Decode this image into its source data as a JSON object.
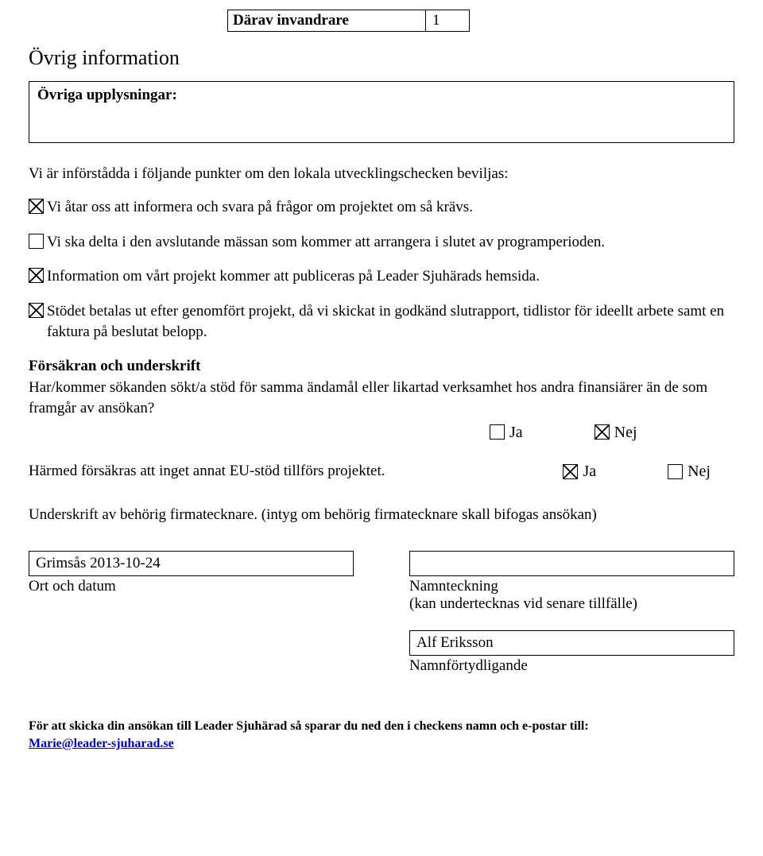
{
  "top": {
    "label": "Därav invandrare",
    "value": "1"
  },
  "sectionTitle": "Övrig information",
  "infoBoxLabel": "Övriga upplysningar:",
  "introLine": "Vi är införstådda i följande punkter om den lokala utvecklingschecken beviljas:",
  "checks": {
    "c1": {
      "checked": true,
      "text": "Vi åtar oss att informera och svara på frågor om projektet om så krävs."
    },
    "c2": {
      "checked": false,
      "text": "Vi ska delta i den avslutande mässan som kommer att arrangera i slutet av programperioden."
    },
    "c3": {
      "checked": true,
      "text": "Information om vårt projekt kommer att publiceras på Leader Sjuhärads hemsida."
    },
    "c4": {
      "checked": true,
      "text": "Stödet betalas ut efter genomfört projekt, då vi skickat in godkänd slutrapport, tidlistor för ideellt arbete samt en faktura på beslutat belopp."
    }
  },
  "assurance": {
    "heading": "Försäkran och underskrift",
    "q1text": "Har/kommer sökanden sökt/a stöd för samma ändamål eller likartad verksamhet hos andra finansiärer än de som framgår av ansökan?",
    "q1ja": false,
    "q1nej": true,
    "jaLabel": "Ja",
    "nejLabel": "Nej",
    "q2text": "Härmed försäkras att inget annat EU-stöd tillförs projektet.",
    "q2ja": true,
    "q2nej": false
  },
  "signature": {
    "line": "Underskrift av behörig firmatecknare. (intyg om behörig firmatecknare skall bifogas ansökan)",
    "ortDatumValue": "Grimsås 2013-10-24",
    "ortDatumLabel": "Ort och datum",
    "namnteckningValue": "",
    "namnteckningLabel": "Namnteckning",
    "namnteckningSub": "(kan undertecknas vid senare tillfälle)",
    "namnfortValue": "Alf Eriksson",
    "namnfortLabel": "Namnförtydligande"
  },
  "sendNote": {
    "text": "För att skicka din ansökan till Leader Sjuhärad så sparar du ned den i checkens namn och e-postar till:",
    "email": "Marie@leader-sjuharad.se"
  }
}
